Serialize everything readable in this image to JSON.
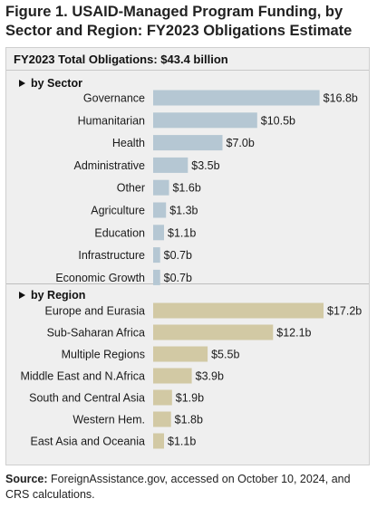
{
  "figure_title": "Figure 1. USAID-Managed Program Funding, by Sector and Region: FY2023 Obligations Estimate",
  "total_label": "FY2023 Total Obligations: $43.4 billion",
  "source_label": "Source:",
  "source_text": " ForeignAssistance.gov, accessed on October 10, 2024, and CRS calculations.",
  "colors": {
    "sector_bar": "#b5c7d3",
    "region_bar": "#d2c9a4",
    "panel_bg": "#efefef"
  },
  "chart_data": [
    {
      "type": "bar",
      "orientation": "horizontal",
      "title": "by Sector",
      "categories": [
        "Governance",
        "Humanitarian",
        "Health",
        "Administrative",
        "Other",
        "Agriculture",
        "Education",
        "Infrastructure",
        "Economic Growth"
      ],
      "values": [
        16.8,
        10.5,
        7.0,
        3.5,
        1.6,
        1.3,
        1.1,
        0.7,
        0.7
      ],
      "value_labels": [
        "$16.8b",
        "$10.5b",
        "$7.0b",
        "$3.5b",
        "$1.6b",
        "$1.3b",
        "$1.1b",
        "$0.7b",
        "$0.7b"
      ],
      "unit": "billion USD",
      "grid": false
    },
    {
      "type": "bar",
      "orientation": "horizontal",
      "title": "by Region",
      "categories": [
        "Europe and Eurasia",
        "Sub-Saharan Africa",
        "Multiple Regions",
        "Middle East and N.Africa",
        "South and Central Asia",
        "Western Hem.",
        "East Asia and Oceania"
      ],
      "values": [
        17.2,
        12.1,
        5.5,
        3.9,
        1.9,
        1.8,
        1.1
      ],
      "value_labels": [
        "$17.2b",
        "$12.1b",
        "$5.5b",
        "$3.9b",
        "$1.9b",
        "$1.8b",
        "$1.1b"
      ],
      "unit": "billion USD",
      "grid": false
    }
  ]
}
